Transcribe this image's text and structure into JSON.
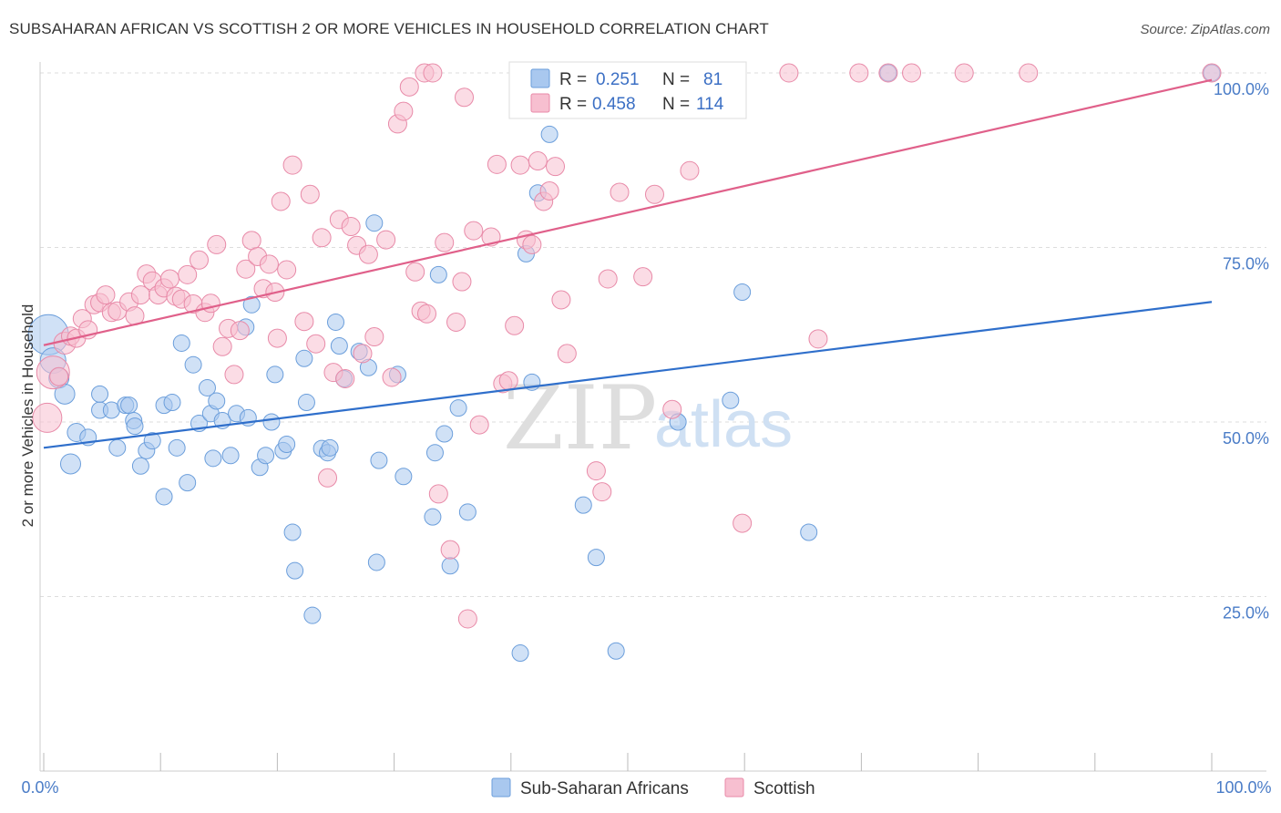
{
  "title": "SUBSAHARAN AFRICAN VS SCOTTISH 2 OR MORE VEHICLES IN HOUSEHOLD CORRELATION CHART",
  "source": "Source: ZipAtlas.com",
  "watermark": {
    "zip": "ZIP",
    "atlas": "atlas"
  },
  "legend": {
    "r_label": "R =",
    "n_label": "N =",
    "rows": [
      {
        "r": "0.251",
        "n": "81",
        "color": "#a9c8ef",
        "stroke": "#6b9edb"
      },
      {
        "r": "0.458",
        "n": "114",
        "color": "#f7bfd0",
        "stroke": "#e88aa8"
      }
    ]
  },
  "chart_data": {
    "type": "scatter",
    "title": "SUBSAHARAN AFRICAN VS SCOTTISH 2 OR MORE VEHICLES IN HOUSEHOLD CORRELATION CHART",
    "xlabel": "",
    "ylabel": "2 or more Vehicles in Household",
    "xlim": [
      0,
      100
    ],
    "ylim": [
      0,
      104
    ],
    "x_tick_labels": [
      "0.0%",
      "100.0%"
    ],
    "y_tick_labels": [
      "25.0%",
      "50.0%",
      "75.0%",
      "100.0%"
    ],
    "y_ticks": [
      25,
      50,
      75,
      100
    ],
    "grid": true,
    "legend_position": "top-center",
    "series": [
      {
        "name": "Sub-Saharan Africans",
        "color": "#a9c8ef",
        "stroke": "#6b9edb",
        "line_color": "#2f6fcb",
        "trend": {
          "x": [
            0,
            100
          ],
          "y": [
            46.3,
            67.2
          ]
        },
        "points": [
          [
            0.4,
            62.5,
            22
          ],
          [
            0.8,
            58.8,
            14
          ],
          [
            1.3,
            56.3,
            11
          ],
          [
            1.8,
            54.0,
            11
          ],
          [
            2.3,
            44.0,
            11
          ],
          [
            2.8,
            48.5,
            10
          ],
          [
            3.8,
            47.8,
            9
          ],
          [
            4.8,
            51.7,
            9
          ],
          [
            4.8,
            54.0,
            9
          ],
          [
            5.8,
            51.7,
            9
          ],
          [
            6.3,
            46.3,
            9
          ],
          [
            7.0,
            52.4,
            9
          ],
          [
            7.3,
            52.4,
            9
          ],
          [
            7.7,
            50.2,
            9
          ],
          [
            7.8,
            49.4,
            9
          ],
          [
            8.3,
            43.7,
            9
          ],
          [
            8.8,
            45.9,
            9
          ],
          [
            9.3,
            47.3,
            9
          ],
          [
            10.3,
            52.4,
            9
          ],
          [
            10.3,
            39.3,
            9
          ],
          [
            11.0,
            52.8,
            9
          ],
          [
            11.4,
            46.3,
            9
          ],
          [
            11.8,
            61.3,
            9
          ],
          [
            12.3,
            41.3,
            9
          ],
          [
            12.8,
            58.2,
            9
          ],
          [
            13.3,
            49.8,
            9
          ],
          [
            14.0,
            54.9,
            9
          ],
          [
            14.3,
            51.2,
            9
          ],
          [
            14.5,
            44.8,
            9
          ],
          [
            14.8,
            53.0,
            9
          ],
          [
            15.3,
            50.2,
            9
          ],
          [
            16.0,
            45.2,
            9
          ],
          [
            16.5,
            51.2,
            9
          ],
          [
            17.3,
            63.6,
            9
          ],
          [
            17.5,
            50.6,
            9
          ],
          [
            17.8,
            66.8,
            9
          ],
          [
            18.5,
            43.5,
            9
          ],
          [
            19.0,
            45.2,
            9
          ],
          [
            19.5,
            50.0,
            9
          ],
          [
            19.8,
            56.8,
            9
          ],
          [
            20.5,
            45.9,
            9
          ],
          [
            20.8,
            46.8,
            9
          ],
          [
            21.3,
            34.2,
            9
          ],
          [
            21.5,
            28.7,
            9
          ],
          [
            22.3,
            59.1,
            9
          ],
          [
            22.5,
            52.8,
            9
          ],
          [
            23.0,
            22.3,
            9
          ],
          [
            23.8,
            46.2,
            9
          ],
          [
            24.3,
            45.6,
            9
          ],
          [
            24.5,
            46.3,
            9
          ],
          [
            25.0,
            64.3,
            9
          ],
          [
            25.3,
            60.9,
            9
          ],
          [
            25.7,
            56.2,
            9
          ],
          [
            27.0,
            60.1,
            9
          ],
          [
            27.8,
            57.8,
            9
          ],
          [
            28.3,
            78.5,
            9
          ],
          [
            28.7,
            44.5,
            9
          ],
          [
            28.5,
            29.9,
            9
          ],
          [
            30.3,
            56.8,
            9
          ],
          [
            30.8,
            42.2,
            9
          ],
          [
            33.3,
            36.4,
            9
          ],
          [
            33.5,
            45.6,
            9
          ],
          [
            33.8,
            71.1,
            9
          ],
          [
            34.3,
            48.3,
            9
          ],
          [
            34.8,
            29.4,
            9
          ],
          [
            35.5,
            52.0,
            9
          ],
          [
            36.3,
            37.1,
            9
          ],
          [
            40.8,
            16.9,
            9
          ],
          [
            41.3,
            74.1,
            9
          ],
          [
            41.8,
            55.7,
            9
          ],
          [
            42.3,
            82.8,
            9
          ],
          [
            43.3,
            91.2,
            9
          ],
          [
            46.2,
            38.1,
            9
          ],
          [
            47.3,
            30.6,
            9
          ],
          [
            49.0,
            17.2,
            9
          ],
          [
            54.3,
            50.0,
            9
          ],
          [
            58.8,
            53.1,
            9
          ],
          [
            59.8,
            68.6,
            9
          ],
          [
            65.5,
            34.2,
            9
          ],
          [
            72.3,
            100.0,
            9
          ],
          [
            100.0,
            100.0,
            9
          ]
        ]
      },
      {
        "name": "Scottish",
        "color": "#f7bfd0",
        "stroke": "#e88aa8",
        "line_color": "#e0608a",
        "trend": {
          "x": [
            0,
            100
          ],
          "y": [
            61.0,
            99.0
          ]
        },
        "points": [
          [
            0.3,
            50.6,
            16
          ],
          [
            0.8,
            57.1,
            18
          ],
          [
            1.3,
            56.5,
            10
          ],
          [
            1.8,
            61.3,
            12
          ],
          [
            2.3,
            62.3,
            10
          ],
          [
            2.8,
            62.0,
            10
          ],
          [
            3.3,
            64.8,
            10
          ],
          [
            3.8,
            63.2,
            10
          ],
          [
            4.3,
            66.8,
            10
          ],
          [
            4.8,
            67.1,
            10
          ],
          [
            5.3,
            68.2,
            10
          ],
          [
            5.8,
            65.7,
            10
          ],
          [
            6.3,
            65.9,
            10
          ],
          [
            7.3,
            67.2,
            10
          ],
          [
            7.8,
            65.2,
            10
          ],
          [
            8.3,
            68.2,
            10
          ],
          [
            8.8,
            71.2,
            10
          ],
          [
            9.3,
            70.2,
            10
          ],
          [
            9.8,
            68.2,
            10
          ],
          [
            10.3,
            69.2,
            10
          ],
          [
            10.8,
            70.5,
            10
          ],
          [
            11.3,
            68.0,
            10
          ],
          [
            11.8,
            67.6,
            10
          ],
          [
            12.3,
            71.1,
            10
          ],
          [
            12.8,
            66.9,
            10
          ],
          [
            13.3,
            73.2,
            10
          ],
          [
            13.8,
            65.7,
            10
          ],
          [
            14.3,
            67.0,
            10
          ],
          [
            14.8,
            75.4,
            10
          ],
          [
            15.3,
            60.8,
            10
          ],
          [
            15.8,
            63.4,
            10
          ],
          [
            16.3,
            56.8,
            10
          ],
          [
            16.8,
            63.1,
            10
          ],
          [
            17.3,
            71.9,
            10
          ],
          [
            17.8,
            76.0,
            10
          ],
          [
            18.3,
            73.7,
            10
          ],
          [
            18.8,
            69.1,
            10
          ],
          [
            19.3,
            72.6,
            10
          ],
          [
            19.8,
            68.6,
            10
          ],
          [
            20.3,
            81.6,
            10
          ],
          [
            20.8,
            71.8,
            10
          ],
          [
            21.3,
            86.8,
            10
          ],
          [
            22.3,
            64.4,
            10
          ],
          [
            22.8,
            82.6,
            10
          ],
          [
            23.3,
            61.2,
            10
          ],
          [
            23.8,
            76.4,
            10
          ],
          [
            24.3,
            42.0,
            10
          ],
          [
            24.8,
            57.1,
            10
          ],
          [
            25.3,
            79.0,
            10
          ],
          [
            25.8,
            56.2,
            10
          ],
          [
            26.3,
            78.0,
            10
          ],
          [
            26.8,
            75.3,
            10
          ],
          [
            27.3,
            59.8,
            10
          ],
          [
            27.8,
            74.0,
            10
          ],
          [
            28.3,
            62.2,
            10
          ],
          [
            29.3,
            76.1,
            10
          ],
          [
            29.8,
            56.4,
            10
          ],
          [
            30.3,
            92.7,
            10
          ],
          [
            30.8,
            94.5,
            10
          ],
          [
            31.3,
            98.0,
            10
          ],
          [
            31.8,
            71.5,
            10
          ],
          [
            32.3,
            65.9,
            10
          ],
          [
            32.8,
            65.5,
            10
          ],
          [
            32.6,
            100.0,
            10
          ],
          [
            33.3,
            100.0,
            10
          ],
          [
            33.8,
            39.7,
            10
          ],
          [
            34.3,
            75.7,
            10
          ],
          [
            34.8,
            31.7,
            10
          ],
          [
            35.3,
            64.3,
            10
          ],
          [
            35.8,
            70.1,
            10
          ],
          [
            36.3,
            21.8,
            10
          ],
          [
            36.8,
            77.4,
            10
          ],
          [
            37.3,
            49.6,
            10
          ],
          [
            38.3,
            76.5,
            10
          ],
          [
            38.8,
            86.9,
            10
          ],
          [
            39.3,
            55.5,
            10
          ],
          [
            39.8,
            55.9,
            10
          ],
          [
            40.3,
            63.8,
            10
          ],
          [
            40.8,
            86.8,
            10
          ],
          [
            41.3,
            76.1,
            10
          ],
          [
            41.8,
            75.4,
            10
          ],
          [
            42.3,
            87.4,
            10
          ],
          [
            42.8,
            81.6,
            10
          ],
          [
            43.3,
            83.1,
            10
          ],
          [
            43.8,
            86.6,
            10
          ],
          [
            44.3,
            67.5,
            10
          ],
          [
            44.8,
            59.8,
            10
          ],
          [
            47.3,
            43.0,
            10
          ],
          [
            47.8,
            40.0,
            10
          ],
          [
            48.3,
            70.5,
            10
          ],
          [
            49.3,
            82.9,
            10
          ],
          [
            51.3,
            70.8,
            10
          ],
          [
            52.3,
            82.6,
            10
          ],
          [
            53.8,
            51.8,
            10
          ],
          [
            55.3,
            86.0,
            10
          ],
          [
            56.8,
            100.0,
            10
          ],
          [
            58.3,
            100.0,
            10
          ],
          [
            59.3,
            100.0,
            10
          ],
          [
            59.8,
            35.5,
            10
          ],
          [
            63.8,
            100.0,
            10
          ],
          [
            66.3,
            61.9,
            10
          ],
          [
            69.8,
            100.0,
            10
          ],
          [
            72.3,
            100.0,
            10
          ],
          [
            74.3,
            100.0,
            10
          ],
          [
            78.8,
            100.0,
            10
          ],
          [
            84.3,
            100.0,
            10
          ],
          [
            100.0,
            100.0,
            10
          ],
          [
            36.0,
            96.5,
            10
          ],
          [
            20.0,
            62.0,
            10
          ]
        ]
      }
    ]
  }
}
